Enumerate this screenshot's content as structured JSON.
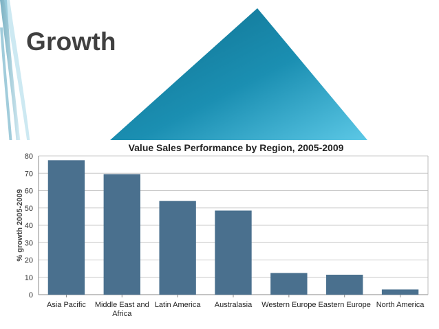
{
  "slide": {
    "title": "Growth",
    "colors": {
      "accent": "#1a8aaa",
      "accent_light": "#4fbfdf",
      "title": "#404040"
    }
  },
  "chart_data": {
    "type": "bar",
    "title": "Value Sales Performance by Region, 2005-2009",
    "xlabel": "",
    "ylabel": "% growth 2005-2009",
    "categories": [
      "Asia Pacific",
      "Middle East and Africa",
      "Latin America",
      "Australasia",
      "Western Europe",
      "Eastern Europe",
      "North America"
    ],
    "category_lines": [
      [
        "Asia Pacific"
      ],
      [
        "Middle East and",
        "Africa"
      ],
      [
        "Latin America"
      ],
      [
        "Australasia"
      ],
      [
        "Western Europe"
      ],
      [
        "Eastern Europe"
      ],
      [
        "North America"
      ]
    ],
    "values": [
      77.5,
      69.5,
      54,
      48.5,
      12.5,
      11.5,
      3
    ],
    "ylim": [
      0,
      80
    ],
    "yticks": [
      0,
      10,
      20,
      30,
      40,
      50,
      60,
      70,
      80
    ],
    "grid": true,
    "bar_color": "#4a708e"
  }
}
